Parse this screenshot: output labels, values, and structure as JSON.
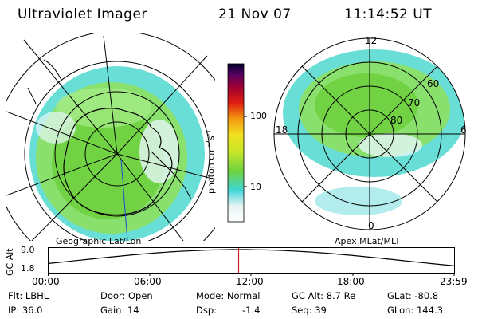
{
  "header": {
    "instrument": "Ultraviolet Imager",
    "date": "21 Nov 07",
    "time": "11:14:52 UT"
  },
  "colors": {
    "accent_red": "#cc2020",
    "map_green": "#7ed43a",
    "map_cyan": "#3fd6d6"
  },
  "left_map": {
    "label": "Geographic Lat/Lon"
  },
  "right_map": {
    "label": "Apex MLat/MLT",
    "mlt_labels": [
      "12",
      "18",
      "6",
      "0"
    ],
    "mlat_labels": [
      "60",
      "70",
      "80"
    ]
  },
  "colorbar": {
    "unit": "photon cm",
    "unit_exp1": "-2",
    "unit_mid": "s",
    "unit_exp2": "-1",
    "ticks": [
      "100",
      "10"
    ]
  },
  "altitude_plot": {
    "ylabel": "GC Alt",
    "ymax_label": "9.0",
    "ymin_label": "1.8",
    "time_ticks": [
      "00:00",
      "06:00",
      "12:00",
      "18:00",
      "23:59"
    ],
    "marker_time": "11:14:52"
  },
  "info": {
    "filter": "Flt: LBHL",
    "door": "Door: Open",
    "mode": "Mode: Normal",
    "gc_alt": "GC Alt: 8.7 Re",
    "glat": "GLat: -80.8",
    "ip": "IP: 36.0",
    "gain": "Gain: 14",
    "dsp_label": "Dsp:",
    "dsp_value": "-1.4",
    "seq": "Seq: 39",
    "glon": "GLon: 144.3"
  }
}
